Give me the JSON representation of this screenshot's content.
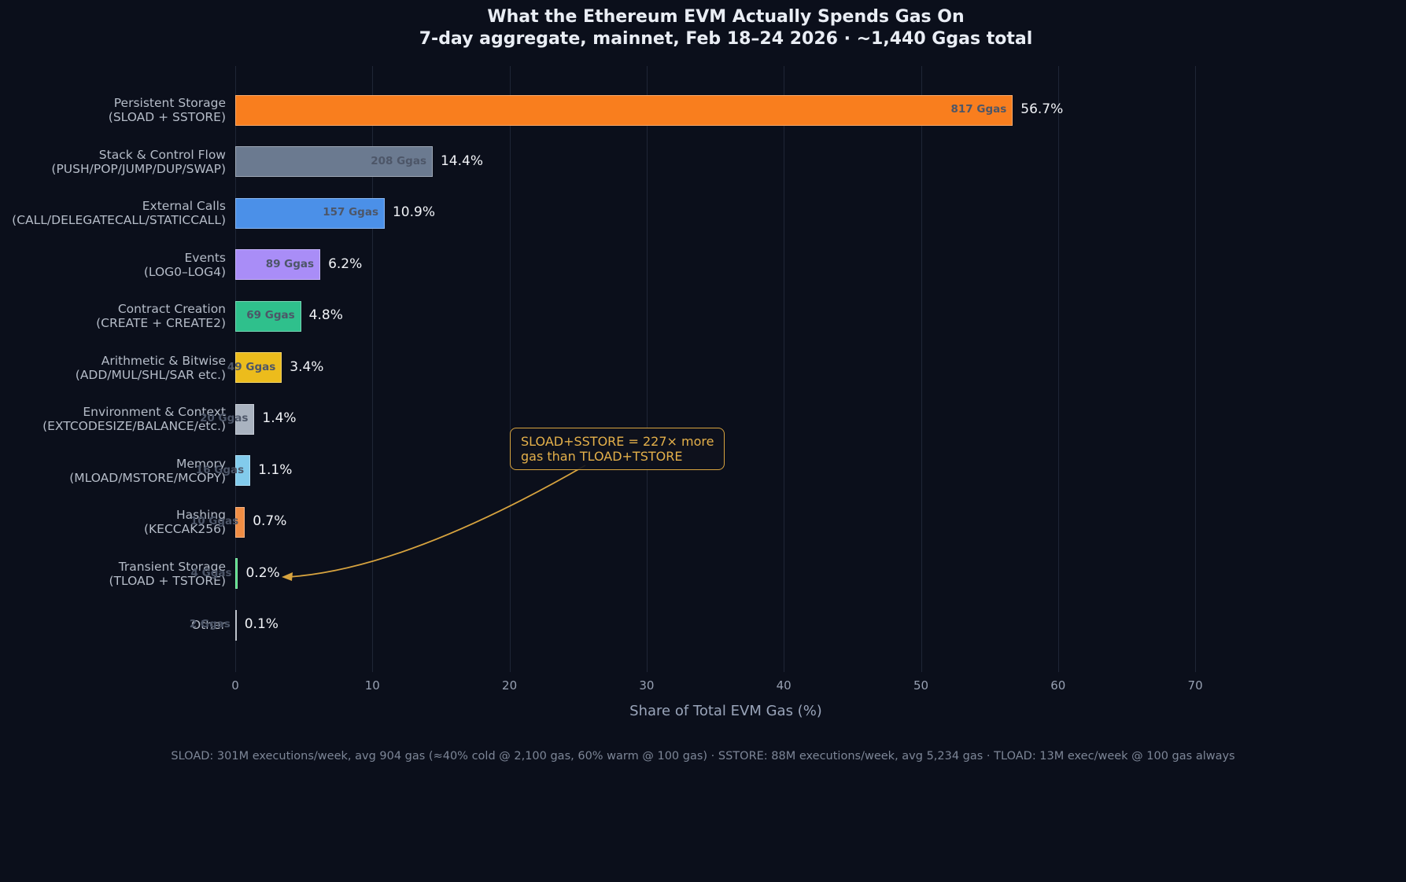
{
  "chart_data": {
    "type": "bar",
    "orientation": "horizontal",
    "title": "What the Ethereum EVM Actually Spends Gas On",
    "subtitle": "7-day aggregate, mainnet, Feb 18–24 2026 · ~1,440 Ggas total",
    "xlabel": "Share of Total EVM Gas (%)",
    "xlim": [
      0,
      71.5
    ],
    "xticks": [
      0,
      10,
      20,
      30,
      40,
      50,
      60,
      70
    ],
    "grid": true,
    "legend": false,
    "total_label": "~1,440 Ggas total",
    "bars": [
      {
        "label": "Persistent Storage",
        "sublabel": "(SLOAD + SSTORE)",
        "value_pct": 56.7,
        "gas_label": "817 Ggas",
        "pct_label": "56.7%",
        "color": "#f97e1e"
      },
      {
        "label": "Stack & Control Flow",
        "sublabel": "(PUSH/POP/JUMP/DUP/SWAP)",
        "value_pct": 14.4,
        "gas_label": "208 Ggas",
        "pct_label": "14.4%",
        "color": "#6b7a90"
      },
      {
        "label": "External Calls",
        "sublabel": "(CALL/DELEGATECALL/STATICCALL)",
        "value_pct": 10.9,
        "gas_label": "157 Ggas",
        "pct_label": "10.9%",
        "color": "#4b90e8"
      },
      {
        "label": "Events",
        "sublabel": "(LOG0–LOG4)",
        "value_pct": 6.2,
        "gas_label": "89 Ggas",
        "pct_label": "6.2%",
        "color": "#a98df7"
      },
      {
        "label": "Contract Creation",
        "sublabel": "(CREATE + CREATE2)",
        "value_pct": 4.8,
        "gas_label": "69 Ggas",
        "pct_label": "4.8%",
        "color": "#2fc08c"
      },
      {
        "label": "Arithmetic & Bitwise",
        "sublabel": "(ADD/MUL/SHL/SAR etc.)",
        "value_pct": 3.4,
        "gas_label": "49 Ggas",
        "pct_label": "3.4%",
        "color": "#ecbc1c"
      },
      {
        "label": "Environment & Context",
        "sublabel": "(EXTCODESIZE/BALANCE/etc.)",
        "value_pct": 1.4,
        "gas_label": "20 Ggas",
        "pct_label": "1.4%",
        "color": "#aab3c0"
      },
      {
        "label": "Memory",
        "sublabel": "(MLOAD/MSTORE/MCOPY)",
        "value_pct": 1.1,
        "gas_label": "16 Ggas",
        "pct_label": "1.1%",
        "color": "#82cbec"
      },
      {
        "label": "Hashing",
        "sublabel": "(KECCAK256)",
        "value_pct": 0.7,
        "gas_label": "10 Ggas",
        "pct_label": "0.7%",
        "color": "#f08d44"
      },
      {
        "label": "Transient Storage",
        "sublabel": "(TLOAD + TSTORE)",
        "value_pct": 0.2,
        "gas_label": "4 Ggas",
        "pct_label": "0.2%",
        "color": "#4ade80"
      },
      {
        "label": "Other",
        "sublabel": "",
        "value_pct": 0.1,
        "gas_label": "2 Ggas",
        "pct_label": "0.1%",
        "color": "#9aa2b0"
      }
    ]
  },
  "annotation": {
    "text_line1": "SLOAD+SSTORE = 227× more",
    "text_line2": "gas than TLOAD+TSTORE",
    "accent_color": "#d7a33f"
  },
  "footnote": "SLOAD: 301M executions/week, avg 904 gas (≈40% cold @ 2,100 gas, 60% warm @ 100 gas) · SSTORE: 88M executions/week, avg 5,234 gas · TLOAD: 13M exec/week @ 100 gas always"
}
